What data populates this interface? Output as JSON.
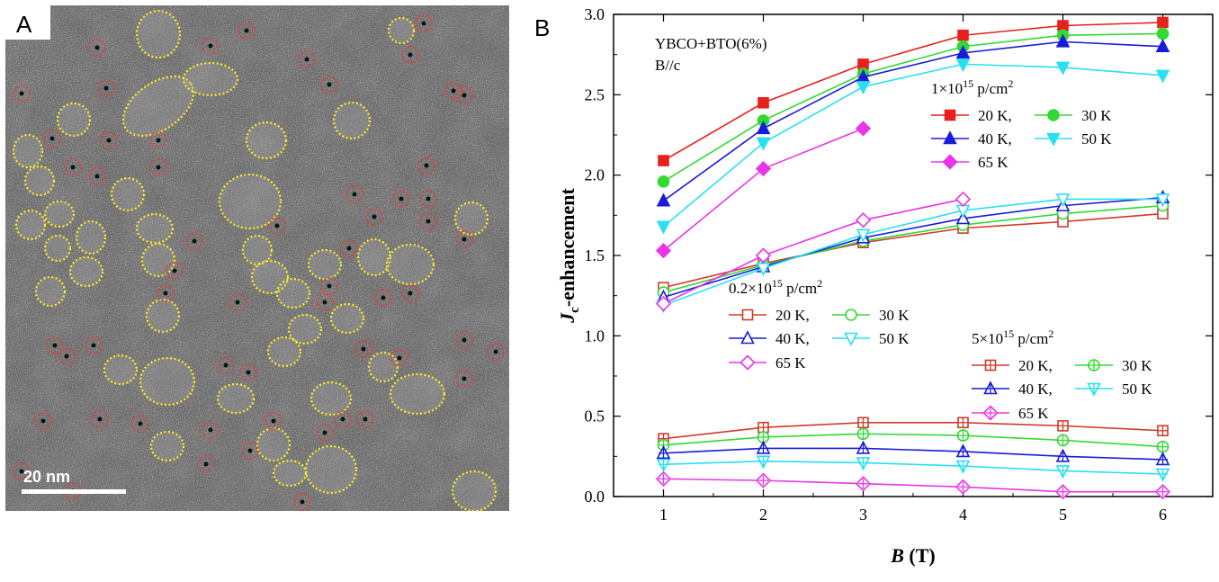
{
  "panel_a": {
    "label": "A",
    "scale_bar": "20 nm",
    "colors": {
      "background": "#6e6e6e",
      "yellow_outline": "#ffee22",
      "red_outline": "#e0403c"
    }
  },
  "panel_b": {
    "label": "B",
    "annotation_line1": "YBCO+BTO(6%)",
    "annotation_line2": "B//c"
  },
  "chart_data": {
    "type": "line",
    "xlabel": "B (T)",
    "ylabel": "Jc-enhancement",
    "xlim": [
      0.5,
      6.5
    ],
    "ylim": [
      0,
      3.0
    ],
    "x_ticks": [
      1,
      2,
      3,
      4,
      5,
      6
    ],
    "y_ticks": [
      0.0,
      0.5,
      1.0,
      1.5,
      2.0,
      2.5,
      3.0
    ],
    "grid": false,
    "groups": [
      {
        "name": "1×10¹⁵ p/cm²",
        "fill": "solid",
        "series": [
          {
            "name": "20 K",
            "marker": "square",
            "color": "#e8201b",
            "x": [
              1,
              2,
              3,
              4,
              5,
              6
            ],
            "values": [
              2.09,
              2.45,
              2.69,
              2.87,
              2.93,
              2.95
            ]
          },
          {
            "name": "30 K",
            "marker": "circle",
            "color": "#33d933",
            "x": [
              1,
              2,
              3,
              4,
              5,
              6
            ],
            "values": [
              1.96,
              2.34,
              2.63,
              2.8,
              2.87,
              2.88
            ]
          },
          {
            "name": "40 K",
            "marker": "triangle-up",
            "color": "#1a1adb",
            "x": [
              1,
              2,
              3,
              4,
              5,
              6
            ],
            "values": [
              1.84,
              2.29,
              2.61,
              2.76,
              2.83,
              2.8
            ]
          },
          {
            "name": "50 K",
            "marker": "triangle-down",
            "color": "#29e0f0",
            "x": [
              1,
              2,
              3,
              4,
              5,
              6
            ],
            "values": [
              1.68,
              2.2,
              2.55,
              2.69,
              2.67,
              2.62
            ]
          },
          {
            "name": "65 K",
            "marker": "diamond",
            "color": "#e835e8",
            "x": [
              1,
              2,
              3
            ],
            "values": [
              1.53,
              2.04,
              2.29
            ]
          }
        ]
      },
      {
        "name": "0.2×10¹⁵ p/cm²",
        "fill": "open",
        "series": [
          {
            "name": "20 K",
            "marker": "square",
            "color": "#d03a2a",
            "x": [
              1,
              2,
              3,
              4,
              5,
              6
            ],
            "values": [
              1.3,
              1.45,
              1.58,
              1.67,
              1.71,
              1.76
            ]
          },
          {
            "name": "30 K",
            "marker": "circle",
            "color": "#33d933",
            "x": [
              1,
              2,
              3,
              4,
              5,
              6
            ],
            "values": [
              1.27,
              1.44,
              1.59,
              1.69,
              1.76,
              1.81
            ]
          },
          {
            "name": "40 K",
            "marker": "triangle-up",
            "color": "#1a1adb",
            "x": [
              1,
              2,
              3,
              4,
              5,
              6
            ],
            "values": [
              1.24,
              1.43,
              1.61,
              1.73,
              1.81,
              1.86
            ]
          },
          {
            "name": "50 K",
            "marker": "triangle-down",
            "color": "#29e0f0",
            "x": [
              1,
              2,
              3,
              4,
              5,
              6
            ],
            "values": [
              1.19,
              1.42,
              1.63,
              1.78,
              1.85,
              1.85
            ]
          },
          {
            "name": "65 K",
            "marker": "diamond",
            "color": "#e835e8",
            "x": [
              1,
              2,
              3,
              4
            ],
            "values": [
              1.2,
              1.5,
              1.72,
              1.85
            ]
          }
        ]
      },
      {
        "name": "5×10¹⁵ p/cm²",
        "fill": "crossed",
        "series": [
          {
            "name": "20 K",
            "marker": "square",
            "color": "#d03a2a",
            "x": [
              1,
              2,
              3,
              4,
              5,
              6
            ],
            "values": [
              0.36,
              0.43,
              0.46,
              0.46,
              0.44,
              0.41
            ]
          },
          {
            "name": "30 K",
            "marker": "circle",
            "color": "#33d933",
            "x": [
              1,
              2,
              3,
              4,
              5,
              6
            ],
            "values": [
              0.32,
              0.37,
              0.39,
              0.38,
              0.35,
              0.31
            ]
          },
          {
            "name": "40 K",
            "marker": "triangle-up",
            "color": "#1a1adb",
            "x": [
              1,
              2,
              3,
              4,
              5,
              6
            ],
            "values": [
              0.27,
              0.3,
              0.3,
              0.28,
              0.25,
              0.23
            ]
          },
          {
            "name": "50 K",
            "marker": "triangle-down",
            "color": "#29e0f0",
            "x": [
              1,
              2,
              3,
              4,
              5,
              6
            ],
            "values": [
              0.2,
              0.22,
              0.21,
              0.19,
              0.16,
              0.14
            ]
          },
          {
            "name": "65 K",
            "marker": "diamond",
            "color": "#e835e8",
            "x": [
              1,
              2,
              3,
              4,
              5,
              6
            ],
            "values": [
              0.11,
              0.1,
              0.08,
              0.06,
              0.03,
              0.03
            ]
          }
        ]
      }
    ]
  }
}
